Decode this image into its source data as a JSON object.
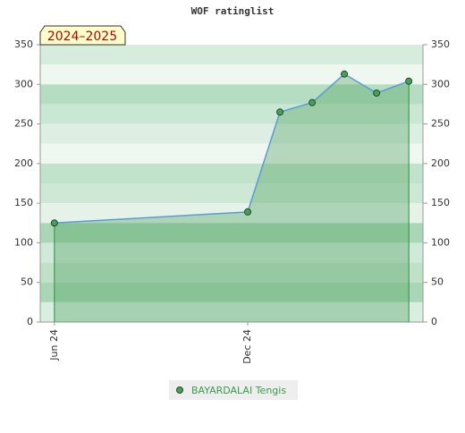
{
  "chart_data": {
    "type": "area",
    "title": "WOF ratinglist",
    "annotation": "2024–2025",
    "x": [
      0,
      6,
      7,
      8,
      9,
      10,
      11
    ],
    "xlim": [
      -0.44,
      11.44
    ],
    "xticks": [
      {
        "value": 0,
        "label": "Jun 24"
      },
      {
        "value": 6,
        "label": "Dec 24"
      }
    ],
    "series": [
      {
        "name": "BAYARDALAI Tengis",
        "color": "#4a9e5c",
        "values": [
          125,
          139,
          265,
          277,
          313,
          289,
          304
        ]
      }
    ],
    "ylim": [
      0,
      350
    ],
    "yticks": [
      0,
      50,
      100,
      150,
      200,
      250,
      300,
      350
    ],
    "y2lim": [
      0,
      350
    ],
    "y2ticks": [
      0,
      50,
      100,
      150,
      200,
      250,
      300,
      350
    ]
  }
}
